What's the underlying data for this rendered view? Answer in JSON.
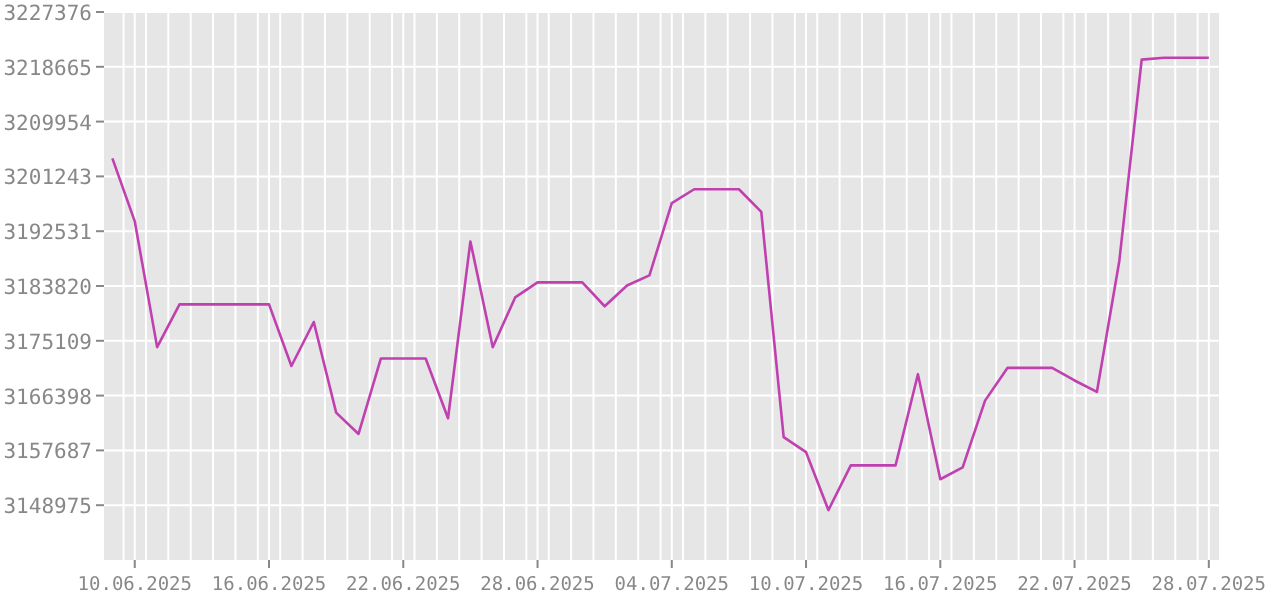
{
  "chart_data": {
    "type": "line",
    "x": [
      "2025-06-09",
      "2025-06-10",
      "2025-06-11",
      "2025-06-12",
      "2025-06-13",
      "2025-06-14",
      "2025-06-15",
      "2025-06-16",
      "2025-06-17",
      "2025-06-18",
      "2025-06-19",
      "2025-06-20",
      "2025-06-21",
      "2025-06-22",
      "2025-06-23",
      "2025-06-24",
      "2025-06-25",
      "2025-06-26",
      "2025-06-27",
      "2025-06-28",
      "2025-06-29",
      "2025-06-30",
      "2025-07-01",
      "2025-07-02",
      "2025-07-03",
      "2025-07-04",
      "2025-07-05",
      "2025-07-06",
      "2025-07-07",
      "2025-07-08",
      "2025-07-09",
      "2025-07-10",
      "2025-07-11",
      "2025-07-12",
      "2025-07-13",
      "2025-07-14",
      "2025-07-15",
      "2025-07-16",
      "2025-07-17",
      "2025-07-18",
      "2025-07-19",
      "2025-07-20",
      "2025-07-21",
      "2025-07-22",
      "2025-07-23",
      "2025-07-24",
      "2025-07-25",
      "2025-07-26",
      "2025-07-27",
      "2025-07-28"
    ],
    "series": [
      {
        "color": "#c040b0",
        "values": [
          3204100,
          3194100,
          3174100,
          3180900,
          3180900,
          3180900,
          3180900,
          3180900,
          3171100,
          3178100,
          3163700,
          3160300,
          3172300,
          3172300,
          3172300,
          3162800,
          3190900,
          3174100,
          3182000,
          3184400,
          3184400,
          3184400,
          3180600,
          3183900,
          3185500,
          3197000,
          3199200,
          3199200,
          3199200,
          3195600,
          3159800,
          3157400,
          3148200,
          3155300,
          3155300,
          3155300,
          3169800,
          3153100,
          3155000,
          3165600,
          3170800,
          3170800,
          3170800,
          3168800,
          3167000,
          3187800,
          3219800,
          3220100,
          3220100,
          3220100
        ]
      }
    ],
    "xlim": [
      "2025-06-08T15:00",
      "2025-07-28T12:00"
    ],
    "xticks": [
      {
        "value": "2025-06-10",
        "label": "10.06.2025"
      },
      {
        "value": "2025-06-16",
        "label": "16.06.2025"
      },
      {
        "value": "2025-06-22",
        "label": "22.06.2025"
      },
      {
        "value": "2025-06-28",
        "label": "28.06.2025"
      },
      {
        "value": "2025-07-04",
        "label": "04.07.2025"
      },
      {
        "value": "2025-07-10",
        "label": "10.07.2025"
      },
      {
        "value": "2025-07-16",
        "label": "16.07.2025"
      },
      {
        "value": "2025-07-22",
        "label": "22.07.2025"
      },
      {
        "value": "2025-07-28",
        "label": "28.07.2025"
      }
    ],
    "ylim": [
      3140264,
      3227376
    ],
    "yticks": [
      3148975,
      3157687,
      3166398,
      3175109,
      3183820,
      3192531,
      3201243,
      3209954,
      3218665,
      3227376
    ],
    "grid": true,
    "marker": "none",
    "line_style": "solid"
  }
}
